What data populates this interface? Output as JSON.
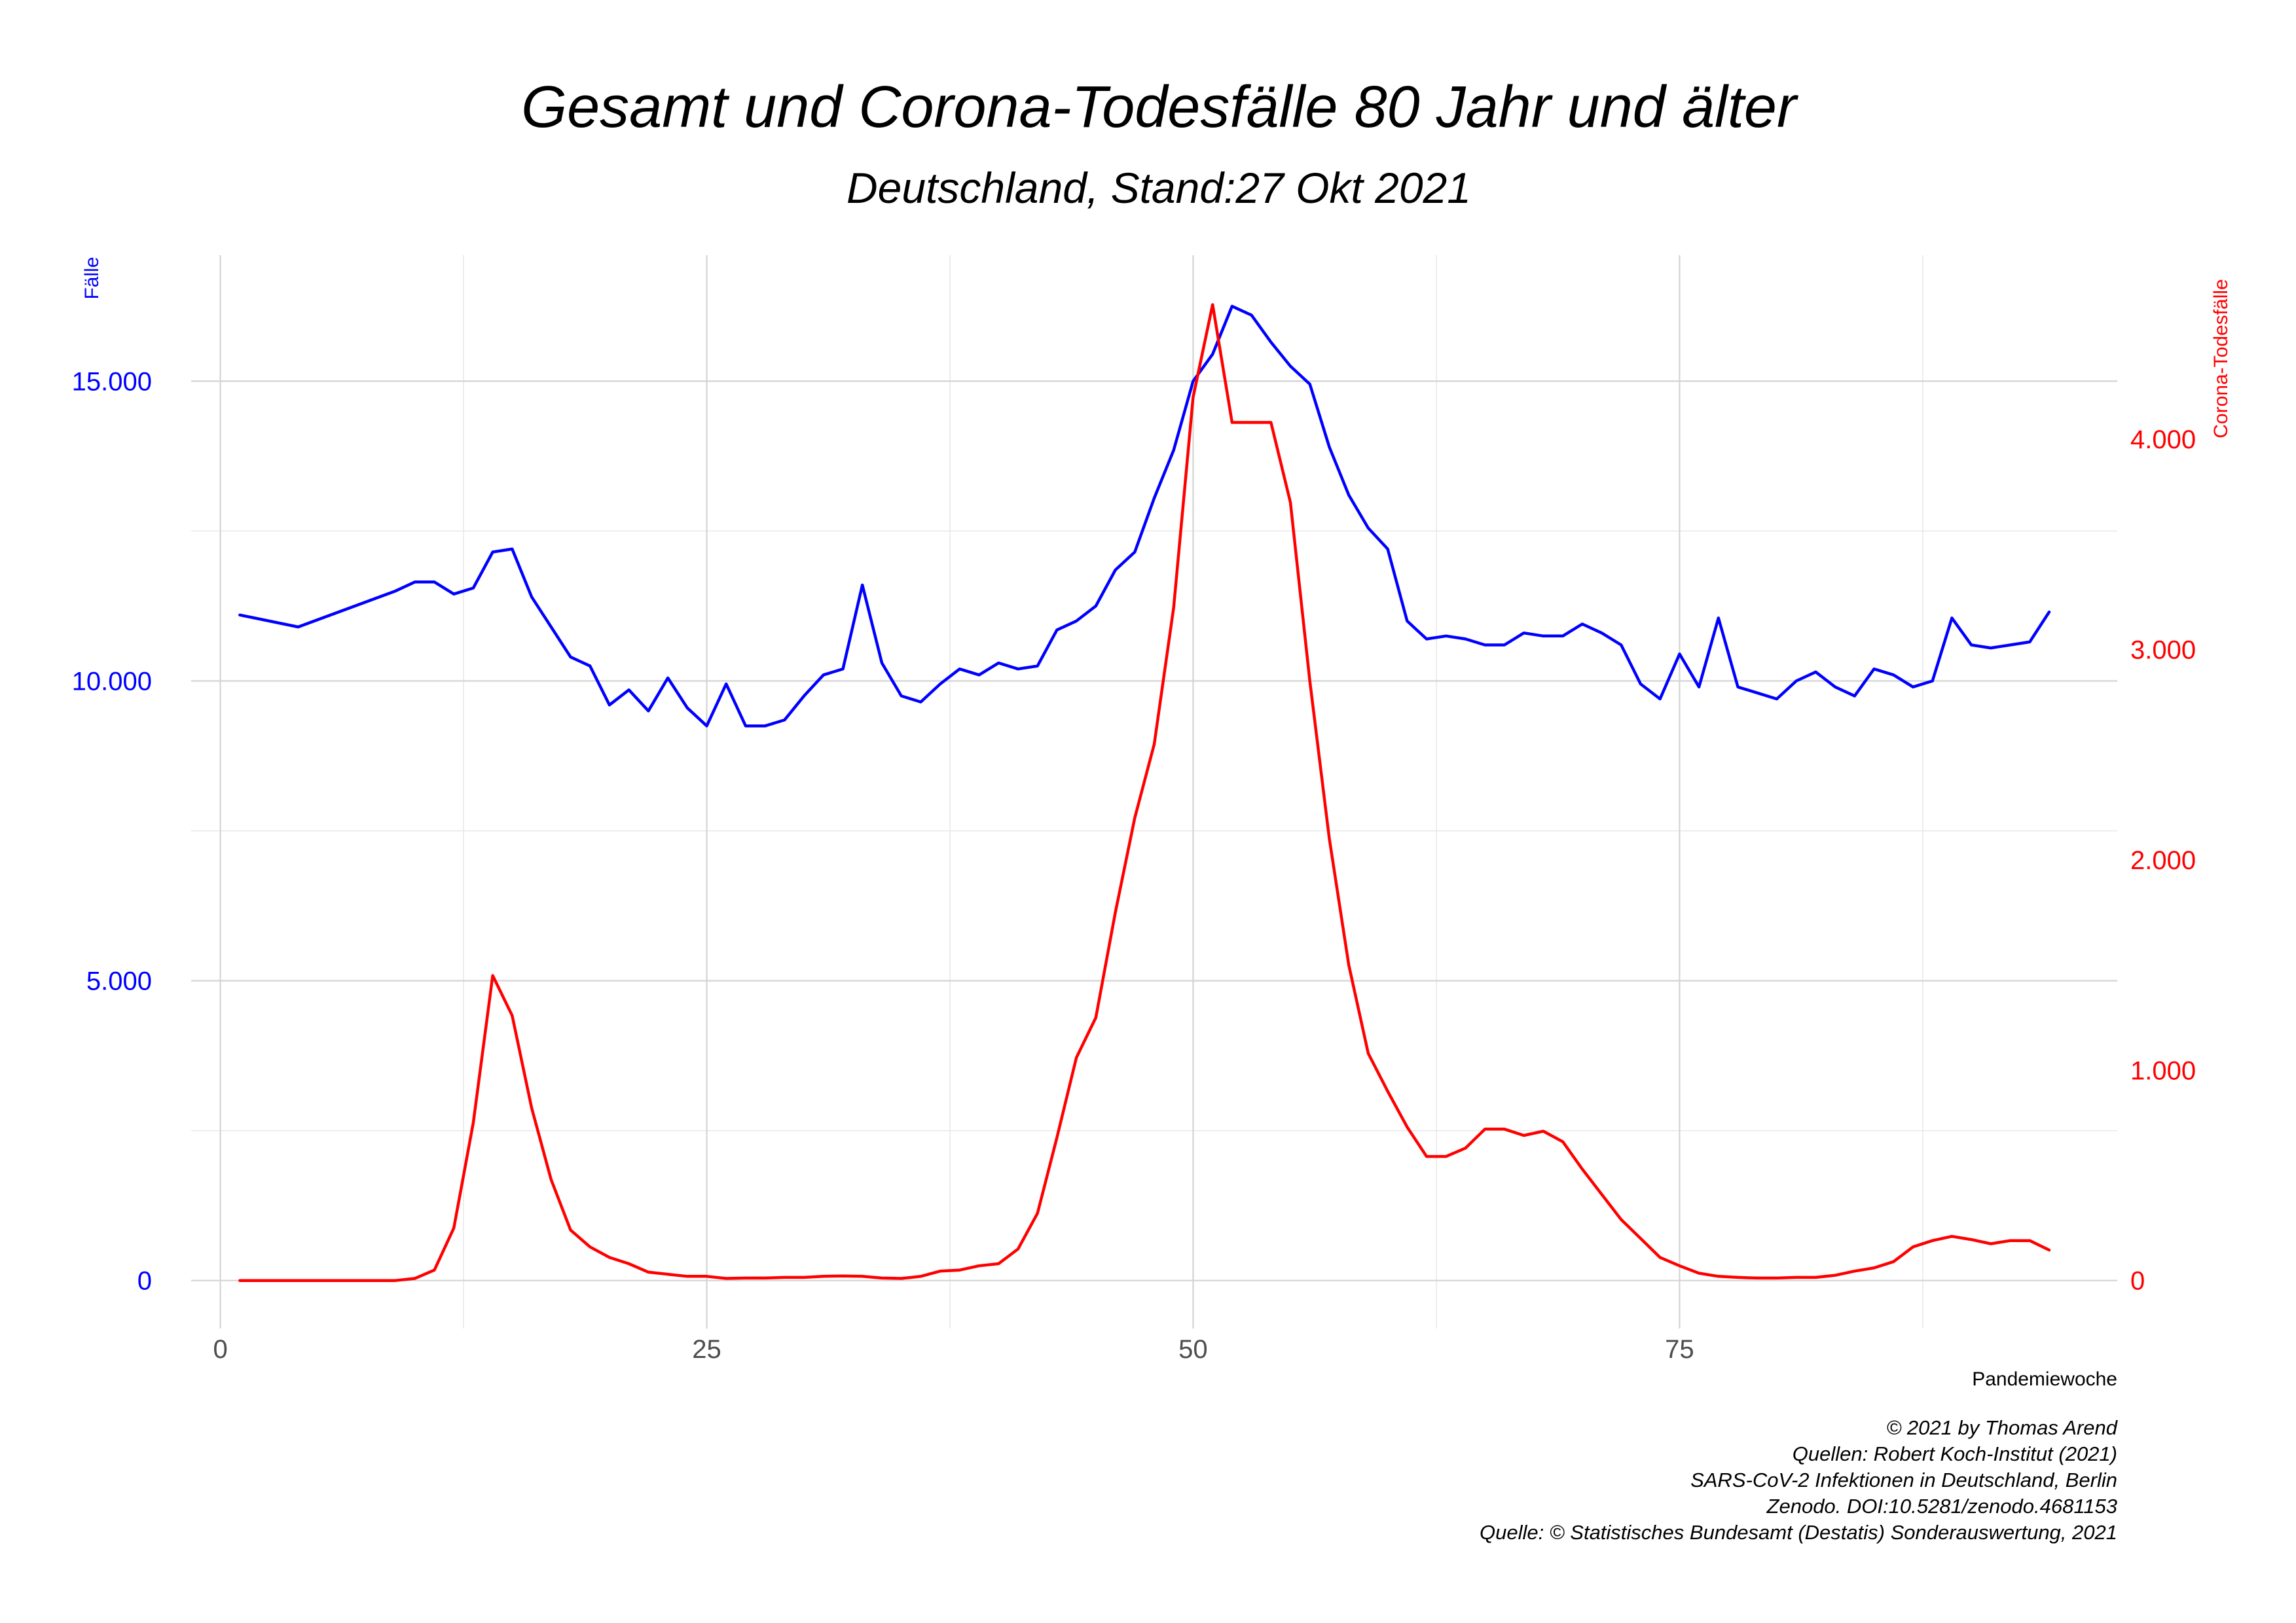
{
  "chart_data": {
    "type": "line",
    "title": "Gesamt und Corona-Todesfälle 80 Jahr und älter",
    "subtitle": "Deutschland, Stand:27 Okt 2021",
    "xlabel": "Pandemiewoche",
    "ylabel_left": "Fälle",
    "ylabel_right": "Corona-Todesfälle",
    "xlim": [
      -1.5,
      97.5
    ],
    "ylim_left": [
      -800,
      17100
    ],
    "ylim_right": [
      -228,
      4875
    ],
    "x_ticks": [
      0,
      25,
      50,
      75
    ],
    "x_tick_labels": [
      "0",
      "25",
      "50",
      "75"
    ],
    "yleft_ticks": [
      0,
      5000,
      10000,
      15000
    ],
    "yleft_tick_labels": [
      "0",
      "5.000",
      "10.000",
      "15.000"
    ],
    "yright_ticks": [
      0,
      1000,
      2000,
      3000,
      4000
    ],
    "yright_tick_labels": [
      "0",
      "1.000",
      "2.000",
      "3.000",
      "4.000"
    ],
    "grid": true,
    "colors": {
      "gesamt": "#0000ff",
      "corona": "#ff0000"
    },
    "series": [
      {
        "axis": "left",
        "color": "#0000ff",
        "points": [
          [
            1,
            11100
          ],
          [
            4,
            10900
          ],
          [
            9,
            11500
          ],
          [
            10,
            11650
          ],
          [
            11,
            11650
          ],
          [
            12,
            11450
          ],
          [
            13,
            11550
          ],
          [
            14,
            12150
          ],
          [
            15,
            12200
          ],
          [
            16,
            11400
          ],
          [
            17,
            10900
          ],
          [
            18,
            10400
          ],
          [
            19,
            10250
          ],
          [
            20,
            9600
          ],
          [
            21,
            9850
          ],
          [
            22,
            9500
          ],
          [
            23,
            10050
          ],
          [
            24,
            9550
          ],
          [
            25,
            9250
          ],
          [
            26,
            9950
          ],
          [
            27,
            9250
          ],
          [
            28,
            9250
          ],
          [
            29,
            9350
          ],
          [
            30,
            9750
          ],
          [
            31,
            10100
          ],
          [
            32,
            10200
          ],
          [
            33,
            11600
          ],
          [
            34,
            10300
          ],
          [
            35,
            9750
          ],
          [
            36,
            9650
          ],
          [
            37,
            9950
          ],
          [
            38,
            10200
          ],
          [
            39,
            10100
          ],
          [
            40,
            10300
          ],
          [
            41,
            10200
          ],
          [
            42,
            10250
          ],
          [
            43,
            10850
          ],
          [
            44,
            11000
          ],
          [
            45,
            11250
          ],
          [
            46,
            11850
          ],
          [
            47,
            12150
          ],
          [
            48,
            13050
          ],
          [
            49,
            13850
          ],
          [
            50,
            15000
          ],
          [
            51,
            15450
          ],
          [
            52,
            16250
          ],
          [
            53,
            16100
          ],
          [
            54,
            15650
          ],
          [
            55,
            15250
          ],
          [
            56,
            14950
          ],
          [
            57,
            13900
          ],
          [
            58,
            13100
          ],
          [
            59,
            12550
          ],
          [
            60,
            12200
          ],
          [
            61,
            11000
          ],
          [
            62,
            10700
          ],
          [
            63,
            10750
          ],
          [
            64,
            10700
          ],
          [
            65,
            10600
          ],
          [
            66,
            10600
          ],
          [
            67,
            10800
          ],
          [
            68,
            10750
          ],
          [
            69,
            10750
          ],
          [
            70,
            10950
          ],
          [
            71,
            10800
          ],
          [
            72,
            10600
          ],
          [
            73,
            9950
          ],
          [
            74,
            9700
          ],
          [
            75,
            10450
          ],
          [
            76,
            9900
          ],
          [
            77,
            11050
          ],
          [
            78,
            9900
          ],
          [
            79,
            9800
          ],
          [
            80,
            9700
          ],
          [
            81,
            10000
          ],
          [
            82,
            10150
          ],
          [
            83,
            9900
          ],
          [
            84,
            9750
          ],
          [
            85,
            10200
          ],
          [
            86,
            10100
          ],
          [
            87,
            9900
          ],
          [
            88,
            10000
          ],
          [
            89,
            11050
          ],
          [
            90,
            10600
          ],
          [
            91,
            10550
          ],
          [
            92,
            10600
          ],
          [
            93,
            10650
          ],
          [
            94,
            11150
          ]
        ]
      },
      {
        "axis": "right",
        "color": "#ff0000",
        "points": [
          [
            1,
            0
          ],
          [
            9,
            0
          ],
          [
            10,
            10
          ],
          [
            11,
            50
          ],
          [
            12,
            250
          ],
          [
            13,
            750
          ],
          [
            14,
            1450
          ],
          [
            15,
            1260
          ],
          [
            16,
            820
          ],
          [
            17,
            480
          ],
          [
            18,
            240
          ],
          [
            19,
            160
          ],
          [
            20,
            110
          ],
          [
            21,
            80
          ],
          [
            22,
            40
          ],
          [
            23,
            30
          ],
          [
            24,
            20
          ],
          [
            25,
            20
          ],
          [
            26,
            10
          ],
          [
            27,
            12
          ],
          [
            28,
            12
          ],
          [
            29,
            15
          ],
          [
            30,
            15
          ],
          [
            31,
            20
          ],
          [
            32,
            22
          ],
          [
            33,
            20
          ],
          [
            34,
            12
          ],
          [
            35,
            10
          ],
          [
            36,
            20
          ],
          [
            37,
            45
          ],
          [
            38,
            50
          ],
          [
            39,
            70
          ],
          [
            40,
            80
          ],
          [
            41,
            150
          ],
          [
            42,
            320
          ],
          [
            43,
            680
          ],
          [
            44,
            1060
          ],
          [
            45,
            1250
          ],
          [
            46,
            1750
          ],
          [
            47,
            2200
          ],
          [
            48,
            2550
          ],
          [
            49,
            3200
          ],
          [
            50,
            4200
          ],
          [
            51,
            4640
          ],
          [
            52,
            4080
          ],
          [
            53,
            4080
          ],
          [
            54,
            4080
          ],
          [
            55,
            3700
          ],
          [
            56,
            2850
          ],
          [
            57,
            2100
          ],
          [
            58,
            1500
          ],
          [
            59,
            1080
          ],
          [
            60,
            900
          ],
          [
            61,
            730
          ],
          [
            62,
            590
          ],
          [
            63,
            590
          ],
          [
            64,
            630
          ],
          [
            65,
            720
          ],
          [
            66,
            720
          ],
          [
            67,
            690
          ],
          [
            68,
            710
          ],
          [
            69,
            660
          ],
          [
            70,
            530
          ],
          [
            71,
            410
          ],
          [
            72,
            290
          ],
          [
            73,
            200
          ],
          [
            74,
            110
          ],
          [
            75,
            70
          ],
          [
            76,
            35
          ],
          [
            77,
            20
          ],
          [
            78,
            15
          ],
          [
            79,
            12
          ],
          [
            80,
            12
          ],
          [
            81,
            15
          ],
          [
            82,
            15
          ],
          [
            83,
            25
          ],
          [
            84,
            45
          ],
          [
            85,
            60
          ],
          [
            86,
            90
          ],
          [
            87,
            160
          ],
          [
            88,
            190
          ],
          [
            89,
            210
          ],
          [
            90,
            195
          ],
          [
            91,
            175
          ],
          [
            92,
            190
          ],
          [
            93,
            190
          ],
          [
            94,
            145
          ]
        ]
      }
    ],
    "caption": [
      "© 2021 by Thomas Arend",
      "Quellen: Robert Koch-Institut (2021)",
      "SARS-CoV-2 Infektionen in Deutschland, Berlin",
      "Zenodo. DOI:10.5281/zenodo.4681153",
      "Quelle: © Statistisches Bundesamt (Destatis) Sonderauswertung, 2021"
    ]
  }
}
